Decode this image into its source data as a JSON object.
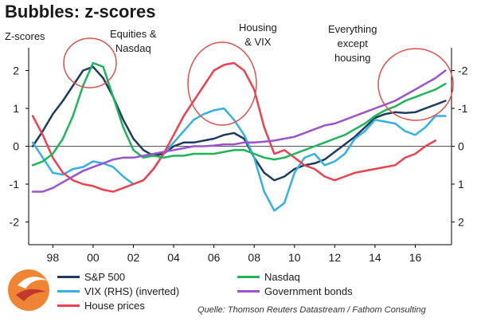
{
  "title": "Bubbles: z-scores",
  "ylabel": "Z-scores",
  "annotations": {
    "a1_l1": "Equities &",
    "a1_l2": "Nasdaq",
    "a2_l1": "Housing",
    "a2_l2": "& VIX",
    "a3_l1": "Everything",
    "a3_l2": "except",
    "a3_l3": "housing"
  },
  "legend": [
    {
      "name": "S&P 500",
      "color": "#1f3b5e"
    },
    {
      "name": "VIX (RHS) (inverted)",
      "color": "#35b0e0"
    },
    {
      "name": "House prices",
      "color": "#e8434f"
    },
    {
      "name": "Nasdaq",
      "color": "#1fb35a"
    },
    {
      "name": "Government bonds",
      "color": "#9b54c9"
    }
  ],
  "source": "Quelle: Thomson Reuters Datastream / Fathom Consulting",
  "chart_data": {
    "type": "line",
    "title": "Bubbles: z-scores",
    "ylabel": "Z-scores",
    "xlim": [
      1996.8,
      2017.8
    ],
    "ylim": [
      -2.6,
      2.6
    ],
    "y2": {
      "inverted": true,
      "ticks": [
        "-2",
        "-1",
        "0",
        "1",
        "2"
      ]
    },
    "xticks": [
      "98",
      "00",
      "02",
      "04",
      "06",
      "08",
      "10",
      "12",
      "14",
      "16"
    ],
    "yticks": [
      "-2",
      "-1",
      "0",
      "1",
      "2"
    ],
    "series": [
      {
        "name": "S&P 500",
        "color": "#1f3b5e",
        "x": [
          1997,
          1997.5,
          1998,
          1998.5,
          1999,
          1999.5,
          2000,
          2000.5,
          2001,
          2001.5,
          2002,
          2002.5,
          2003,
          2003.5,
          2004,
          2004.5,
          2005,
          2005.5,
          2006,
          2006.5,
          2007,
          2007.5,
          2008,
          2008.5,
          2009,
          2009.5,
          2010,
          2010.5,
          2011,
          2011.5,
          2012,
          2012.5,
          2013,
          2013.5,
          2014,
          2014.5,
          2015,
          2015.5,
          2016,
          2016.5,
          2017,
          2017.5
        ],
        "y": [
          0.0,
          0.4,
          0.85,
          1.2,
          1.6,
          2.0,
          2.1,
          1.8,
          1.3,
          0.7,
          0.2,
          -0.1,
          -0.25,
          -0.2,
          0.0,
          0.1,
          0.1,
          0.15,
          0.2,
          0.3,
          0.35,
          0.2,
          -0.3,
          -0.7,
          -0.9,
          -0.8,
          -0.6,
          -0.5,
          -0.45,
          -0.35,
          -0.15,
          0.05,
          0.25,
          0.5,
          0.75,
          0.85,
          0.9,
          0.88,
          0.9,
          1.0,
          1.1,
          1.2
        ]
      },
      {
        "name": "VIX (RHS) (inverted)",
        "color": "#35b0e0",
        "x": [
          1997,
          1997.5,
          1998,
          1998.5,
          1999,
          1999.5,
          2000,
          2000.5,
          2001,
          2001.5,
          2002,
          2002.5,
          2003,
          2003.5,
          2004,
          2004.5,
          2005,
          2005.5,
          2006,
          2006.5,
          2007,
          2007.5,
          2008,
          2008.5,
          2009,
          2009.5,
          2010,
          2010.5,
          2011,
          2011.5,
          2012,
          2012.5,
          2013,
          2013.5,
          2014,
          2014.5,
          2015,
          2015.5,
          2016,
          2016.5,
          2017,
          2017.5
        ],
        "y": [
          0.1,
          -0.3,
          -0.7,
          -0.75,
          -0.6,
          -0.55,
          -0.4,
          -0.45,
          -0.55,
          -0.8,
          -1.0,
          -0.9,
          -0.6,
          -0.2,
          0.1,
          0.4,
          0.7,
          0.85,
          0.95,
          1.0,
          0.7,
          0.3,
          -0.3,
          -1.2,
          -1.7,
          -1.5,
          -0.7,
          -0.3,
          -0.2,
          -0.5,
          -0.4,
          -0.2,
          0.2,
          0.4,
          0.7,
          0.65,
          0.6,
          0.4,
          0.3,
          0.5,
          0.8,
          0.8
        ]
      },
      {
        "name": "House prices",
        "color": "#e8434f",
        "x": [
          1997,
          1997.5,
          1998,
          1998.5,
          1999,
          1999.5,
          2000,
          2000.5,
          2001,
          2001.5,
          2002,
          2002.5,
          2003,
          2003.5,
          2004,
          2004.5,
          2005,
          2005.5,
          2006,
          2006.5,
          2007,
          2007.5,
          2008,
          2008.5,
          2009,
          2009.5,
          2010,
          2010.5,
          2011,
          2011.5,
          2012,
          2012.5,
          2013,
          2013.5,
          2014,
          2014.5,
          2015,
          2015.5,
          2016,
          2016.5,
          2017
        ],
        "y": [
          0.8,
          0.3,
          -0.3,
          -0.7,
          -0.9,
          -1.0,
          -1.05,
          -1.15,
          -1.2,
          -1.1,
          -1.0,
          -0.9,
          -0.6,
          -0.2,
          0.3,
          0.8,
          1.2,
          1.6,
          2.0,
          2.15,
          2.2,
          2.0,
          1.5,
          0.5,
          -0.2,
          -0.1,
          -0.3,
          -0.5,
          -0.6,
          -0.8,
          -0.9,
          -0.8,
          -0.7,
          -0.65,
          -0.6,
          -0.55,
          -0.5,
          -0.3,
          -0.2,
          0.0,
          0.15
        ]
      },
      {
        "name": "Nasdaq",
        "color": "#1fb35a",
        "x": [
          1997,
          1997.5,
          1998,
          1998.5,
          1999,
          1999.5,
          2000,
          2000.5,
          2001,
          2001.5,
          2002,
          2002.5,
          2003,
          2003.5,
          2004,
          2004.5,
          2005,
          2005.5,
          2006,
          2006.5,
          2007,
          2007.5,
          2008,
          2008.5,
          2009,
          2009.5,
          2010,
          2010.5,
          2011,
          2011.5,
          2012,
          2012.5,
          2013,
          2013.5,
          2014,
          2014.5,
          2015,
          2015.5,
          2016,
          2016.5,
          2017,
          2017.5
        ],
        "y": [
          -0.5,
          -0.4,
          -0.2,
          0.2,
          0.8,
          1.6,
          2.2,
          2.1,
          1.3,
          0.5,
          -0.1,
          -0.3,
          -0.25,
          -0.3,
          -0.25,
          -0.25,
          -0.2,
          -0.2,
          -0.2,
          -0.15,
          -0.1,
          -0.1,
          -0.2,
          -0.3,
          -0.35,
          -0.3,
          -0.2,
          -0.1,
          0.0,
          0.1,
          0.2,
          0.3,
          0.45,
          0.6,
          0.8,
          0.95,
          1.05,
          1.2,
          1.3,
          1.4,
          1.5,
          1.65
        ]
      },
      {
        "name": "Government bonds",
        "color": "#9b54c9",
        "x": [
          1997,
          1997.5,
          1998,
          1998.5,
          1999,
          1999.5,
          2000,
          2000.5,
          2001,
          2001.5,
          2002,
          2002.5,
          2003,
          2003.5,
          2004,
          2004.5,
          2005,
          2005.5,
          2006,
          2006.5,
          2007,
          2007.5,
          2008,
          2008.5,
          2009,
          2009.5,
          2010,
          2010.5,
          2011,
          2011.5,
          2012,
          2012.5,
          2013,
          2013.5,
          2014,
          2014.5,
          2015,
          2015.5,
          2016,
          2016.5,
          2017,
          2017.5
        ],
        "y": [
          -1.2,
          -1.2,
          -1.1,
          -0.95,
          -0.8,
          -0.65,
          -0.55,
          -0.45,
          -0.35,
          -0.3,
          -0.3,
          -0.25,
          -0.2,
          -0.15,
          -0.1,
          -0.05,
          0.0,
          0.0,
          0.02,
          0.05,
          0.05,
          0.1,
          0.1,
          0.12,
          0.15,
          0.2,
          0.25,
          0.35,
          0.45,
          0.55,
          0.6,
          0.7,
          0.8,
          0.9,
          1.0,
          1.1,
          1.2,
          1.35,
          1.5,
          1.65,
          1.8,
          2.0
        ]
      }
    ]
  }
}
